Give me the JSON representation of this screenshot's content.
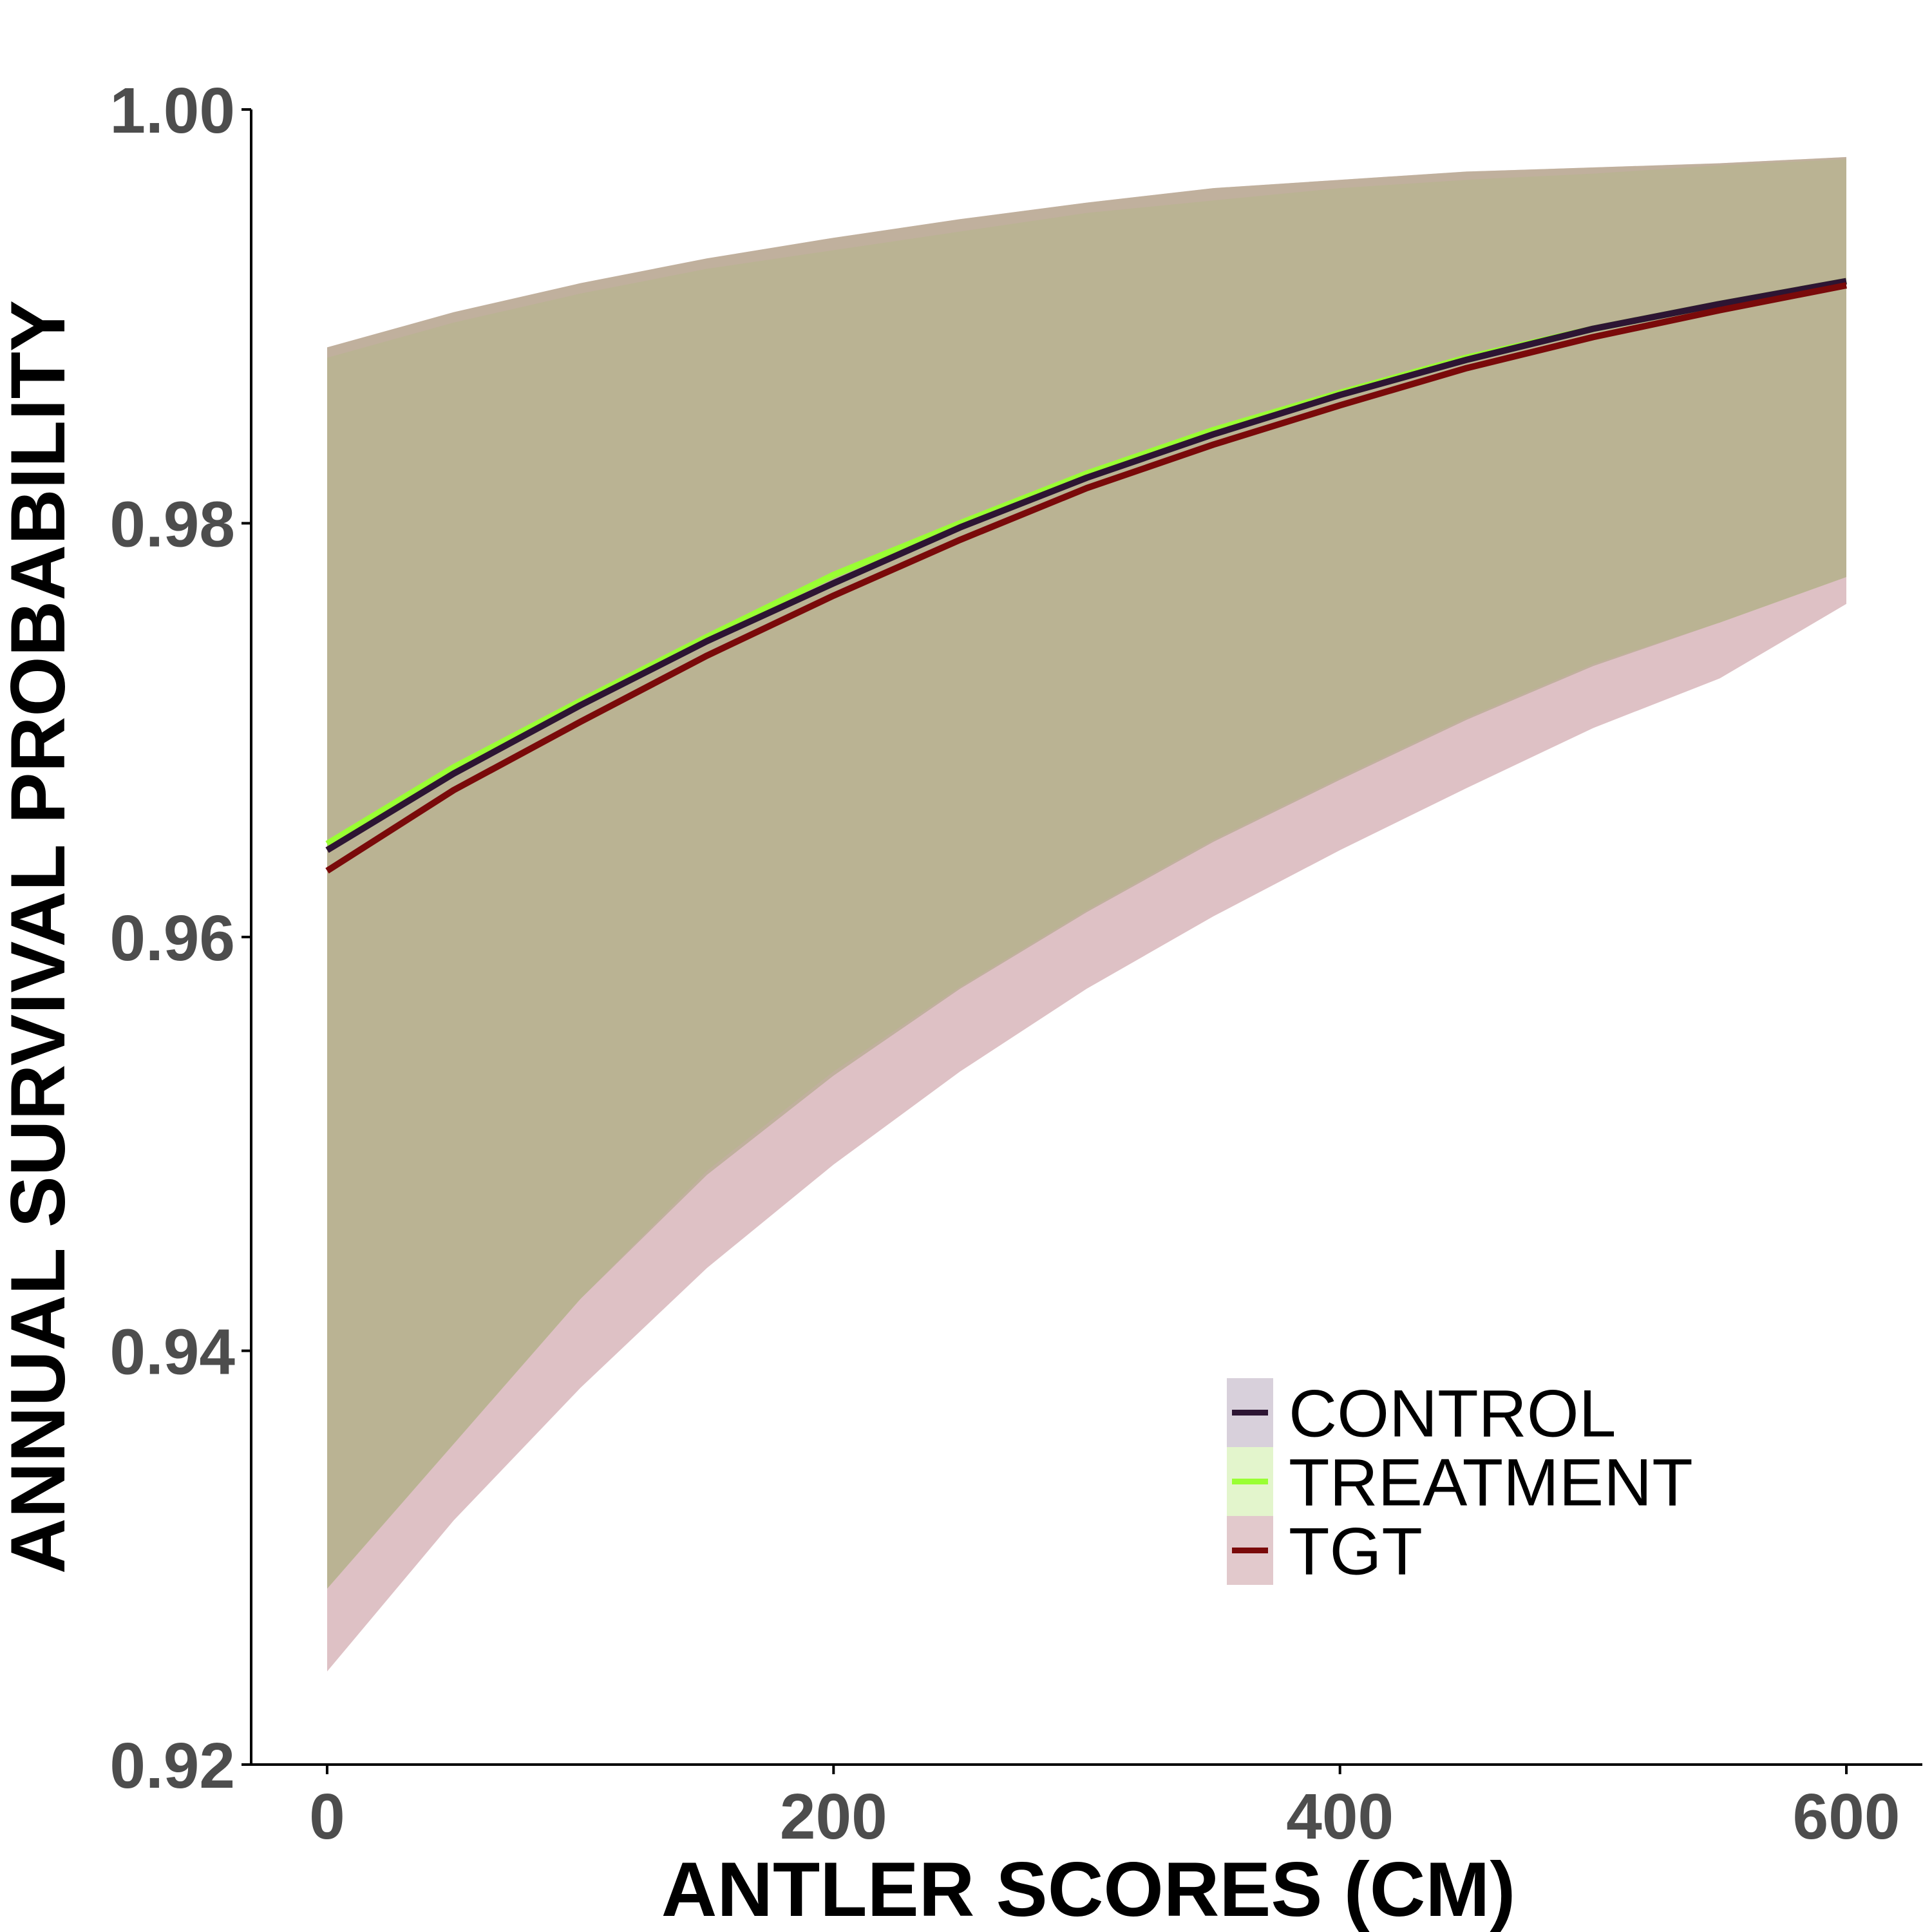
{
  "chart_data": {
    "type": "line",
    "xlabel": "ANTLER SCORES (CM)",
    "ylabel": "ANNUAL SURVIVAL PROBABILITY",
    "xlim": [
      -30,
      630
    ],
    "ylim": [
      0.92,
      1.0
    ],
    "x_ticks": [
      0,
      200,
      400,
      600
    ],
    "x_tick_labels": [
      "0",
      "200",
      "400",
      "600"
    ],
    "y_ticks": [
      0.92,
      0.94,
      0.96,
      0.98,
      1.0
    ],
    "y_tick_labels": [
      "0.92",
      "0.94",
      "0.96",
      "0.98",
      "1.00"
    ],
    "grid": false,
    "legend_position": "bottom-right",
    "x": [
      0,
      50,
      100,
      150,
      200,
      250,
      300,
      350,
      400,
      450,
      500,
      550,
      600
    ],
    "series": [
      {
        "name": "CONTROL",
        "color": "#2d1533",
        "band_color": "#d8d0db",
        "values": [
          0.9642,
          0.9679,
          0.9712,
          0.9743,
          0.9771,
          0.9798,
          0.9822,
          0.9843,
          0.9862,
          0.9879,
          0.9894,
          0.9906,
          0.9917
        ],
        "lower": [
          0.9285,
          0.9355,
          0.9425,
          0.9485,
          0.9533,
          0.9575,
          0.9612,
          0.9646,
          0.9676,
          0.9705,
          0.9731,
          0.9752,
          0.9774
        ],
        "upper": [
          0.9885,
          0.9902,
          0.9916,
          0.9928,
          0.9938,
          0.9947,
          0.9955,
          0.9962,
          0.9966,
          0.997,
          0.9972,
          0.9974,
          0.9977
        ]
      },
      {
        "name": "TREATMENT",
        "color": "#99ff33",
        "band_color": "#e3f5cc",
        "values": [
          0.9645,
          0.9682,
          0.9714,
          0.9745,
          0.9775,
          0.98,
          0.9824,
          0.9845,
          0.9863,
          0.988,
          0.9894,
          0.9906,
          0.9917
        ],
        "lower": [
          0.9285,
          0.9355,
          0.9425,
          0.9487,
          0.9535,
          0.9576,
          0.9613,
          0.9647,
          0.9677,
          0.9706,
          0.9732,
          0.9752,
          0.9774
        ],
        "upper": [
          0.988,
          0.9897,
          0.9911,
          0.9923,
          0.9932,
          0.9941,
          0.995,
          0.9956,
          0.9962,
          0.9966,
          0.9969,
          0.9973,
          0.9976
        ]
      },
      {
        "name": "TGT",
        "color": "#7a0a0a",
        "band_color": "#e2c9cc",
        "values": [
          0.9632,
          0.9671,
          0.9704,
          0.9736,
          0.9765,
          0.9792,
          0.9817,
          0.9838,
          0.9857,
          0.9875,
          0.989,
          0.9903,
          0.9915
        ],
        "lower": [
          0.9245,
          0.9318,
          0.9382,
          0.944,
          0.949,
          0.9535,
          0.9575,
          0.961,
          0.9642,
          0.9672,
          0.9701,
          0.9725,
          0.9761
        ],
        "upper": [
          0.9885,
          0.9902,
          0.9916,
          0.9928,
          0.9938,
          0.9947,
          0.9955,
          0.9962,
          0.9966,
          0.997,
          0.9972,
          0.9974,
          0.9977
        ]
      }
    ]
  }
}
